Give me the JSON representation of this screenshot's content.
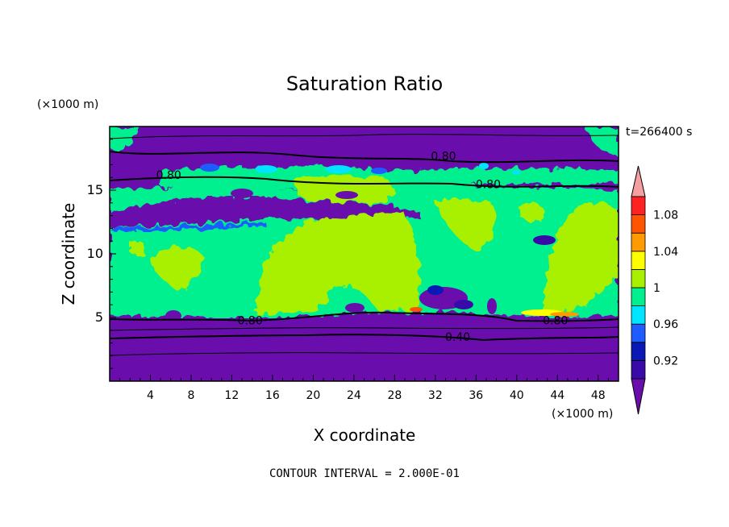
{
  "chart_data": {
    "type": "heatmap",
    "title": "Saturation Ratio",
    "xlabel": "X coordinate",
    "ylabel": "Z coordinate",
    "x_unit": "(×1000 m)",
    "y_unit": "(×1000 m)",
    "time_label": "t=266400 s",
    "footer": "CONTOUR INTERVAL = 2.000E-01",
    "xlim": [
      0,
      50
    ],
    "ylim": [
      0,
      20
    ],
    "x_ticks": [
      "4",
      "8",
      "12",
      "16",
      "20",
      "24",
      "28",
      "32",
      "36",
      "40",
      "44",
      "48"
    ],
    "y_ticks": [
      "5",
      "10",
      "15"
    ],
    "colorbar": {
      "colors": [
        "#6a0dad",
        "#3a0aa8",
        "#0a18b4",
        "#1e5cff",
        "#00e5ff",
        "#00f090",
        "#a8f000",
        "#ffff00",
        "#ff9a00",
        "#ff5500",
        "#ff2222",
        "#f4a0a0"
      ],
      "tick_labels": [
        "0.92",
        "0.96",
        "1",
        "1.04",
        "1.08"
      ]
    },
    "contour_labels": [
      {
        "text": "0.80",
        "x": 5.8,
        "z": 16.0
      },
      {
        "text": "0.80",
        "x": 32.8,
        "z": 17.5
      },
      {
        "text": "0.80",
        "x": 37.2,
        "z": 15.3
      },
      {
        "text": "0.80",
        "x": 13.8,
        "z": 4.6
      },
      {
        "text": "0.80",
        "x": 43.8,
        "z": 4.6
      },
      {
        "text": "0.40",
        "x": 34.2,
        "z": 3.3
      }
    ]
  }
}
